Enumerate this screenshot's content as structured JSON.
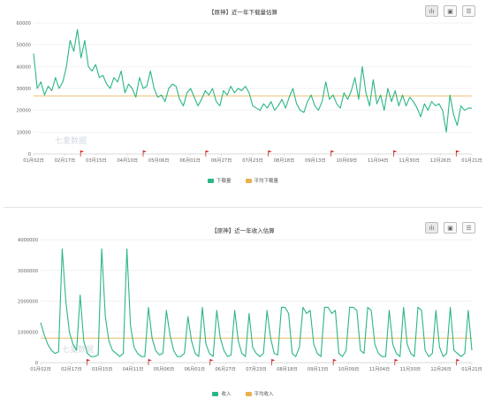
{
  "chart_data": [
    {
      "type": "line",
      "title": "【原神】近一年下载量估算",
      "y_ticks": [
        "0",
        "10000",
        "20000",
        "30000",
        "40000",
        "50000",
        "60000"
      ],
      "ylim": [
        0,
        60000
      ],
      "x_ticks": [
        "01月02日",
        "02月17日",
        "03月15日",
        "04月10日",
        "05月06日",
        "06月01日",
        "06月27日",
        "07月23日",
        "08月18日",
        "09月13日",
        "10月09日",
        "11月04日",
        "11月30日",
        "12月26日",
        "01月21日"
      ],
      "xlim": [
        "01月02日",
        "01月21日"
      ],
      "average": 26500,
      "legend_position": "bottom",
      "grid": true,
      "watermark": "七麦数据",
      "series": [
        {
          "name": "下载量",
          "color": "#2bb58a",
          "x": [
            "01月02日",
            "01月05日",
            "01月08日",
            "01月11日",
            "01月14日",
            "01月17日",
            "01月20日",
            "01月23日",
            "01月26日",
            "01月29日",
            "02月01日",
            "02月04日",
            "02月07日",
            "02月10日",
            "02月13日",
            "02月17日",
            "02月20日",
            "02月23日",
            "02月26日",
            "03月01日",
            "03月04日",
            "03月07日",
            "03月10日",
            "03月13日",
            "03月16日",
            "03月19日",
            "03月22日",
            "03月25日",
            "03月28日",
            "03月31日",
            "04月03日",
            "04月06日",
            "04月10日",
            "04月13日",
            "04月16日",
            "04月19日",
            "04月22日",
            "04月25日",
            "04月28日",
            "05月01日",
            "05月06日",
            "05月09日",
            "05月12日",
            "05月15日",
            "05月18日",
            "05月21日",
            "05月24日",
            "05月27日",
            "06月01日",
            "06月04日",
            "06月07日",
            "06月10日",
            "06月13日",
            "06月16日",
            "06月19日",
            "06月22日",
            "06月27日",
            "06月30日",
            "07月03日",
            "07月06日",
            "07月09日",
            "07月12日",
            "07月15日",
            "07月18日",
            "07月23日",
            "07月26日",
            "07月29日",
            "08月01日",
            "08月04日",
            "08月07日",
            "08月10日",
            "08月13日",
            "08月18日",
            "08月21日",
            "08月24日",
            "08月27日",
            "08月30日",
            "09月02日",
            "09月05日",
            "09月08日",
            "09月13日",
            "09月16日",
            "09月19日",
            "09月22日",
            "09月25日",
            "09月28日",
            "10月01日",
            "10月04日",
            "10月09日",
            "10月12日",
            "10月15日",
            "10月18日",
            "10月21日",
            "10月24日",
            "10月27日",
            "10月30日",
            "11月04日",
            "11月07日",
            "11月10日",
            "11月13日",
            "11月16日",
            "11月19日",
            "11月22日",
            "11月25日",
            "11月30日",
            "12月03日",
            "12月06日",
            "12月09日",
            "12月12日",
            "12月15日",
            "12月18日",
            "12月21日",
            "12月26日",
            "12月29日",
            "01月01日",
            "01月04日",
            "01月07日",
            "01月10日",
            "01月13日",
            "01月16日",
            "01月21日"
          ],
          "values": [
            46000,
            30000,
            33000,
            27000,
            31000,
            29000,
            35000,
            30000,
            33000,
            40000,
            52000,
            47000,
            57000,
            44000,
            52000,
            40000,
            38000,
            41000,
            35000,
            36000,
            32000,
            30000,
            35000,
            33000,
            38000,
            28000,
            32000,
            30000,
            26000,
            35000,
            30000,
            31000,
            38000,
            30000,
            26000,
            27000,
            24000,
            30000,
            32000,
            31000,
            25000,
            22000,
            28000,
            30000,
            26000,
            22000,
            25000,
            29000,
            27000,
            30000,
            24000,
            22000,
            29000,
            27000,
            31000,
            28000,
            30000,
            29000,
            31000,
            28000,
            22000,
            21000,
            20000,
            23000,
            21000,
            24000,
            20000,
            22000,
            25000,
            21000,
            26000,
            30000,
            23000,
            20000,
            19000,
            24000,
            27000,
            22000,
            20000,
            24000,
            33000,
            25000,
            27000,
            23000,
            21000,
            28000,
            25000,
            29000,
            35000,
            25000,
            40000,
            28000,
            22000,
            34000,
            23000,
            27000,
            20000,
            30000,
            24000,
            29000,
            22000,
            27000,
            22000,
            26000,
            24000,
            21000,
            17000,
            23000,
            20000,
            24000,
            22000,
            23000,
            20000,
            10000,
            27000,
            18000,
            13000,
            22000,
            20000,
            21000,
            21000
          ]
        },
        {
          "name": "平均下载量",
          "color": "#e8b14c"
        }
      ]
    },
    {
      "type": "line",
      "title": "【原神】近一年收入估算",
      "y_ticks": [
        "0",
        "1000000",
        "2000000",
        "3000000",
        "4000000"
      ],
      "ylim": [
        0,
        4000000
      ],
      "x_ticks": [
        "01月02日",
        "02月17日",
        "03月15日",
        "04月11日",
        "05月06日",
        "06月01日",
        "06月27日",
        "07月23日",
        "08月18日",
        "09月13日",
        "10月09日",
        "11月04日",
        "11月30日",
        "12月26日",
        "01月21日"
      ],
      "xlim": [
        "01月02日",
        "01月21日"
      ],
      "average": 800000,
      "legend_position": "bottom",
      "grid": true,
      "watermark": "七麦数据",
      "series": [
        {
          "name": "收入",
          "color": "#2bb58a",
          "x": [
            "01月02日",
            "01月05日",
            "01月08日",
            "01月11日",
            "01月14日",
            "01月17日",
            "01月20日",
            "01月23日",
            "01月26日",
            "01月29日",
            "02月01日",
            "02月04日",
            "02月07日",
            "02月10日",
            "02月13日",
            "02月17日",
            "02月20日",
            "02月23日",
            "02月26日",
            "03月01日",
            "03月04日",
            "03月07日",
            "03月10日",
            "03月13日",
            "03月16日",
            "03月19日",
            "03月22日",
            "03月25日",
            "03月28日",
            "03月31日",
            "04月03日",
            "04月06日",
            "04月11日",
            "04月14日",
            "04月17日",
            "04月20日",
            "04月23日",
            "04月26日",
            "04月29日",
            "05月02日",
            "05月06日",
            "05月09日",
            "05月12日",
            "05月15日",
            "05月18日",
            "05月21日",
            "05月24日",
            "05月27日",
            "06月01日",
            "06月04日",
            "06月07日",
            "06月10日",
            "06月13日",
            "06月16日",
            "06月19日",
            "06月22日",
            "06月27日",
            "06月30日",
            "07月03日",
            "07月06日",
            "07月09日",
            "07月12日",
            "07月15日",
            "07月18日",
            "07月23日",
            "07月26日",
            "07月29日",
            "08月01日",
            "08月04日",
            "08月07日",
            "08月10日",
            "08月13日",
            "08月18日",
            "08月21日",
            "08月24日",
            "08月27日",
            "08月30日",
            "09月02日",
            "09月05日",
            "09月08日",
            "09月13日",
            "09月16日",
            "09月19日",
            "09月22日",
            "09月25日",
            "09月28日",
            "10月01日",
            "10月04日",
            "10月09日",
            "10月12日",
            "10月15日",
            "10月18日",
            "10月21日",
            "10月24日",
            "10月27日",
            "10月30日",
            "11月04日",
            "11月07日",
            "11月10日",
            "11月13日",
            "11月16日",
            "11月19日",
            "11月22日",
            "11月25日",
            "11月30日",
            "12月03日",
            "12月06日",
            "12月09日",
            "12月12日",
            "12月15日",
            "12月18日",
            "12月21日",
            "12月26日",
            "12月29日",
            "01月01日",
            "01月04日",
            "01月07日",
            "01月10日",
            "01月13日",
            "01月16日",
            "01月21日"
          ],
          "values": [
            1300000,
            900000,
            600000,
            400000,
            300000,
            350000,
            3700000,
            2000000,
            1000000,
            600000,
            400000,
            2200000,
            700000,
            300000,
            200000,
            200000,
            250000,
            3700000,
            1500000,
            700000,
            400000,
            300000,
            200000,
            300000,
            3700000,
            1200000,
            500000,
            300000,
            200000,
            200000,
            1800000,
            800000,
            400000,
            250000,
            300000,
            1700000,
            900000,
            400000,
            200000,
            200000,
            300000,
            1500000,
            700000,
            300000,
            200000,
            1800000,
            600000,
            300000,
            200000,
            1700000,
            800000,
            400000,
            200000,
            250000,
            1700000,
            700000,
            300000,
            200000,
            1600000,
            500000,
            300000,
            200000,
            300000,
            1700000,
            800000,
            300000,
            250000,
            1800000,
            1800000,
            1600000,
            300000,
            200000,
            500000,
            1800000,
            1600000,
            1700000,
            600000,
            300000,
            200000,
            1800000,
            1800000,
            1600000,
            1700000,
            300000,
            200000,
            400000,
            1800000,
            1800000,
            1700000,
            400000,
            300000,
            1800000,
            1700000,
            600000,
            300000,
            200000,
            200000,
            1700000,
            600000,
            300000,
            200000,
            1800000,
            600000,
            300000,
            200000,
            1800000,
            1700000,
            400000,
            200000,
            300000,
            1700000,
            500000,
            200000,
            300000,
            1800000,
            400000,
            300000,
            200000,
            300000,
            1700000,
            400000
          ]
        },
        {
          "name": "平均收入",
          "color": "#e8b14c"
        }
      ]
    }
  ]
}
